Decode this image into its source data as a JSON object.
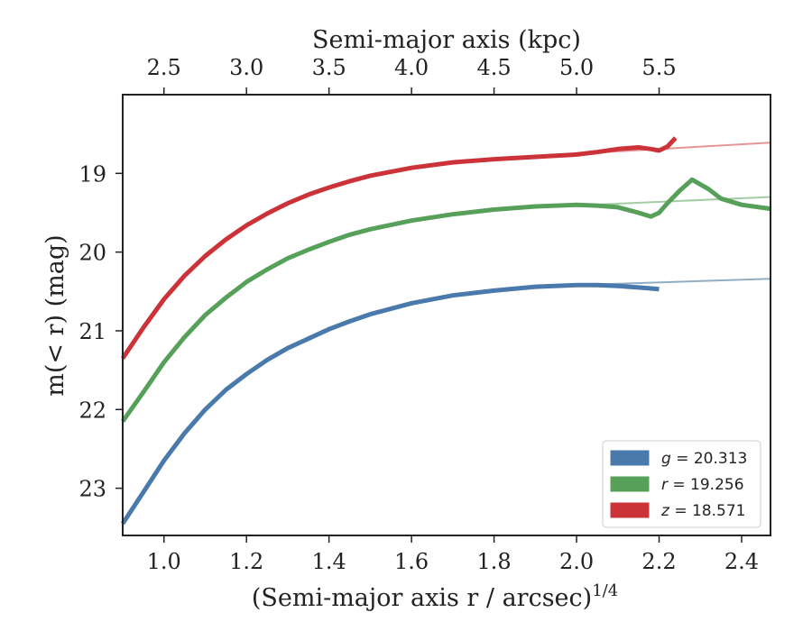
{
  "chart_data": {
    "type": "line",
    "xlabel": "(Semi-major axis r / arcsec)",
    "xlabel_superscript": "1/4",
    "ylabel": "m(< r) (mag)",
    "top_xlabel": "Semi-major axis (kpc)",
    "xlim": [
      0.9,
      2.47
    ],
    "ylim": [
      23.6,
      18.0
    ],
    "y_inverted": true,
    "x_ticks": [
      "1.0",
      "1.2",
      "1.4",
      "1.6",
      "1.8",
      "2.0",
      "2.2",
      "2.4"
    ],
    "y_ticks": [
      "19",
      "20",
      "21",
      "22",
      "23"
    ],
    "top_ticks": [
      "2.5",
      "3.0",
      "3.5",
      "4.0",
      "4.5",
      "5.0",
      "5.5"
    ],
    "top_tick_positions_x": [
      1.0,
      1.2,
      1.4,
      1.6,
      1.8,
      2.0,
      2.2
    ],
    "grid": false,
    "legend_position": "lower-right",
    "legend": [
      {
        "label": "g = 20.313",
        "var": "g",
        "value": "= 20.313",
        "color": "#4a7aab"
      },
      {
        "label": "r = 19.256",
        "var": "r",
        "value": "= 19.256",
        "color": "#56a05a"
      },
      {
        "label": "z = 18.571",
        "var": "z",
        "value": "= 18.571",
        "color": "#cc3339"
      }
    ],
    "series": [
      {
        "name": "g",
        "color": "#4a7aab",
        "x": [
          0.9,
          0.95,
          1.0,
          1.05,
          1.1,
          1.15,
          1.2,
          1.25,
          1.3,
          1.35,
          1.4,
          1.45,
          1.5,
          1.6,
          1.7,
          1.8,
          1.9,
          2.0,
          2.05,
          2.1,
          2.15,
          2.2
        ],
        "y": [
          23.45,
          23.05,
          22.65,
          22.3,
          22.0,
          21.75,
          21.55,
          21.37,
          21.22,
          21.1,
          20.98,
          20.88,
          20.79,
          20.65,
          20.55,
          20.49,
          20.44,
          20.42,
          20.42,
          20.43,
          20.45,
          20.47
        ]
      },
      {
        "name": "r",
        "color": "#56a05a",
        "x": [
          0.9,
          0.95,
          1.0,
          1.05,
          1.1,
          1.15,
          1.2,
          1.25,
          1.3,
          1.35,
          1.4,
          1.45,
          1.5,
          1.6,
          1.7,
          1.8,
          1.9,
          2.0,
          2.05,
          2.1,
          2.15,
          2.18,
          2.2,
          2.22,
          2.25,
          2.28,
          2.32,
          2.35,
          2.4,
          2.47
        ],
        "y": [
          22.15,
          21.78,
          21.4,
          21.08,
          20.8,
          20.58,
          20.38,
          20.22,
          20.08,
          19.97,
          19.87,
          19.78,
          19.71,
          19.6,
          19.52,
          19.46,
          19.42,
          19.4,
          19.41,
          19.43,
          19.5,
          19.55,
          19.5,
          19.38,
          19.22,
          19.08,
          19.2,
          19.32,
          19.4,
          19.45
        ]
      },
      {
        "name": "z",
        "color": "#cc3339",
        "x": [
          0.9,
          0.95,
          1.0,
          1.05,
          1.1,
          1.15,
          1.2,
          1.25,
          1.3,
          1.35,
          1.4,
          1.45,
          1.5,
          1.6,
          1.7,
          1.8,
          1.9,
          2.0,
          2.05,
          2.1,
          2.15,
          2.18,
          2.2,
          2.22,
          2.24
        ],
        "y": [
          21.35,
          20.96,
          20.6,
          20.3,
          20.05,
          19.84,
          19.66,
          19.51,
          19.38,
          19.27,
          19.18,
          19.1,
          19.03,
          18.93,
          18.86,
          18.82,
          18.79,
          18.76,
          18.73,
          18.69,
          18.67,
          18.69,
          18.71,
          18.66,
          18.55
        ]
      }
    ],
    "model_curves": [
      {
        "name": "g",
        "color": "#8faec5",
        "x": [
          2.0,
          2.47
        ],
        "y": [
          20.42,
          20.34
        ]
      },
      {
        "name": "r",
        "color": "#a4cda4",
        "x": [
          1.95,
          2.47
        ],
        "y": [
          19.42,
          19.3
        ]
      },
      {
        "name": "z",
        "color": "#e79496",
        "x": [
          1.9,
          2.47
        ],
        "y": [
          18.78,
          18.61
        ]
      }
    ]
  }
}
